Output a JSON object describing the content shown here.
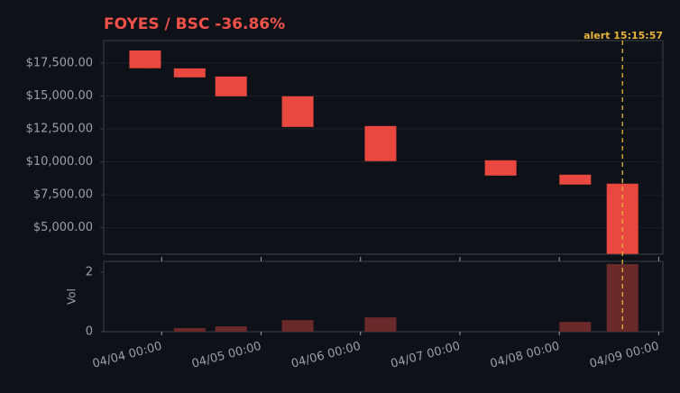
{
  "chart_data": {
    "type": "candlestick",
    "title": "FOYES / BSC  -36.86%",
    "x": [
      "04/03 20:00",
      "04/04 06:45",
      "04/04 16:45",
      "04/05 08:50",
      "04/06 04:50",
      "04/07 09:50",
      "04/08 03:50",
      "04/08 15:15"
    ],
    "open": [
      18450,
      17090,
      16475,
      14973,
      12720,
      10120,
      9030,
      8350
    ],
    "high": [
      18450,
      17090,
      16475,
      14973,
      12720,
      10120,
      9030,
      8350
    ],
    "low": [
      17100,
      16410,
      14973,
      12650,
      10055,
      8960,
      8280,
      3020
    ],
    "close": [
      17100,
      16410,
      14973,
      12650,
      10055,
      8960,
      8280,
      3020
    ],
    "volume": [
      0,
      0.12,
      0.18,
      0.39,
      0.48,
      0,
      0.33,
      2.27
    ],
    "color": "#e8483f",
    "volume_color": "#6b2a2a",
    "xlim": [
      "04/03 10:00",
      "04/09 01:00"
    ],
    "xticks": [
      "04/04 00:00",
      "04/05 00:00",
      "04/06 00:00",
      "04/07 00:00",
      "04/08 00:00",
      "04/09 00:00"
    ],
    "ylim": [
      3000,
      19200
    ],
    "yticks": [
      {
        "value": 5000,
        "label": "$5,000.00"
      },
      {
        "value": 7500,
        "label": "$7,500.00"
      },
      {
        "value": 10000,
        "label": "$10,000.00"
      },
      {
        "value": 12500,
        "label": "$12,500.00"
      },
      {
        "value": 15000,
        "label": "$15,000.00"
      },
      {
        "value": 17500,
        "label": "$17,500.00"
      }
    ],
    "y2lim": [
      0,
      2.36
    ],
    "y2ticks": [
      0,
      2
    ],
    "y2label": "Vol",
    "grid": true,
    "alert": {
      "text": "alert 15:15:57",
      "x": "04/08 15:15",
      "color": "#e8b43a"
    }
  }
}
